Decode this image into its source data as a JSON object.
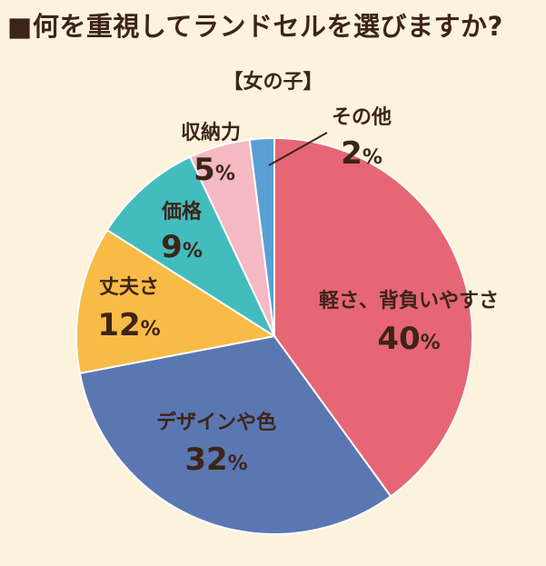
{
  "chart_data": {
    "type": "pie",
    "title": "■何を重視してランドセルを選びますか?",
    "subtitle": "【女の子】",
    "unit": "%",
    "slices": [
      {
        "label": "軽さ、背負いやすさ",
        "value": 40,
        "color": "#e66675"
      },
      {
        "label": "デザインや色",
        "value": 32,
        "color": "#5a77b2"
      },
      {
        "label": "丈夫さ",
        "value": 12,
        "color": "#f7bb46"
      },
      {
        "label": "価格",
        "value": 9,
        "color": "#43bcbd"
      },
      {
        "label": "収納力",
        "value": 5,
        "color": "#f4b9c2"
      },
      {
        "label": "その他",
        "value": 2,
        "color": "#5a9fd4"
      }
    ]
  }
}
